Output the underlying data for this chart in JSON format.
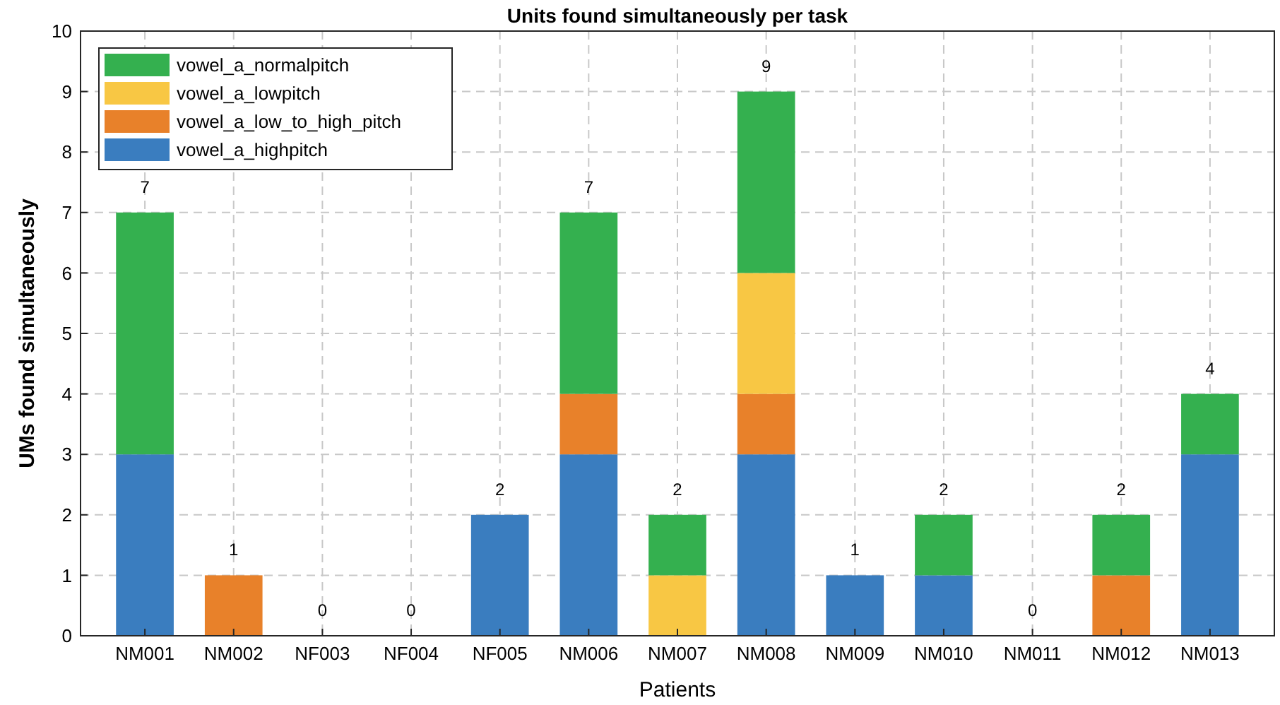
{
  "chart_data": {
    "type": "bar",
    "title": "Units found simultaneously per task",
    "xlabel": "Patients",
    "ylabel": "UMs found simultaneously",
    "categories": [
      "NM001",
      "NM002",
      "NF003",
      "NF004",
      "NF005",
      "NM006",
      "NM007",
      "NM008",
      "NM009",
      "NM010",
      "NM011",
      "NM012",
      "NM013"
    ],
    "series": [
      {
        "name": "vowel_a_highpitch",
        "color": "#3a7dbf",
        "values": [
          3,
          0,
          0,
          0,
          2,
          3,
          0,
          3,
          1,
          1,
          0,
          0,
          3
        ]
      },
      {
        "name": "vowel_a_low_to_high_pitch",
        "color": "#e8812a",
        "values": [
          0,
          1,
          0,
          0,
          0,
          1,
          0,
          1,
          0,
          0,
          0,
          1,
          0
        ]
      },
      {
        "name": "vowel_a_lowpitch",
        "color": "#f8c744",
        "values": [
          0,
          0,
          0,
          0,
          0,
          0,
          1,
          2,
          0,
          0,
          0,
          0,
          0
        ]
      },
      {
        "name": "vowel_a_normalpitch",
        "color": "#34b04f",
        "values": [
          4,
          0,
          0,
          0,
          0,
          3,
          1,
          3,
          0,
          1,
          0,
          1,
          1
        ]
      }
    ],
    "stacked": true,
    "totals": [
      "7",
      "1",
      "0",
      "0",
      "2",
      "7",
      "2",
      "9",
      "1",
      "2",
      "0",
      "2",
      "4"
    ],
    "ylim": [
      0,
      10
    ],
    "yticks": [
      0,
      1,
      2,
      3,
      4,
      5,
      6,
      7,
      8,
      9,
      10
    ],
    "grid": true,
    "legend": "top left"
  }
}
